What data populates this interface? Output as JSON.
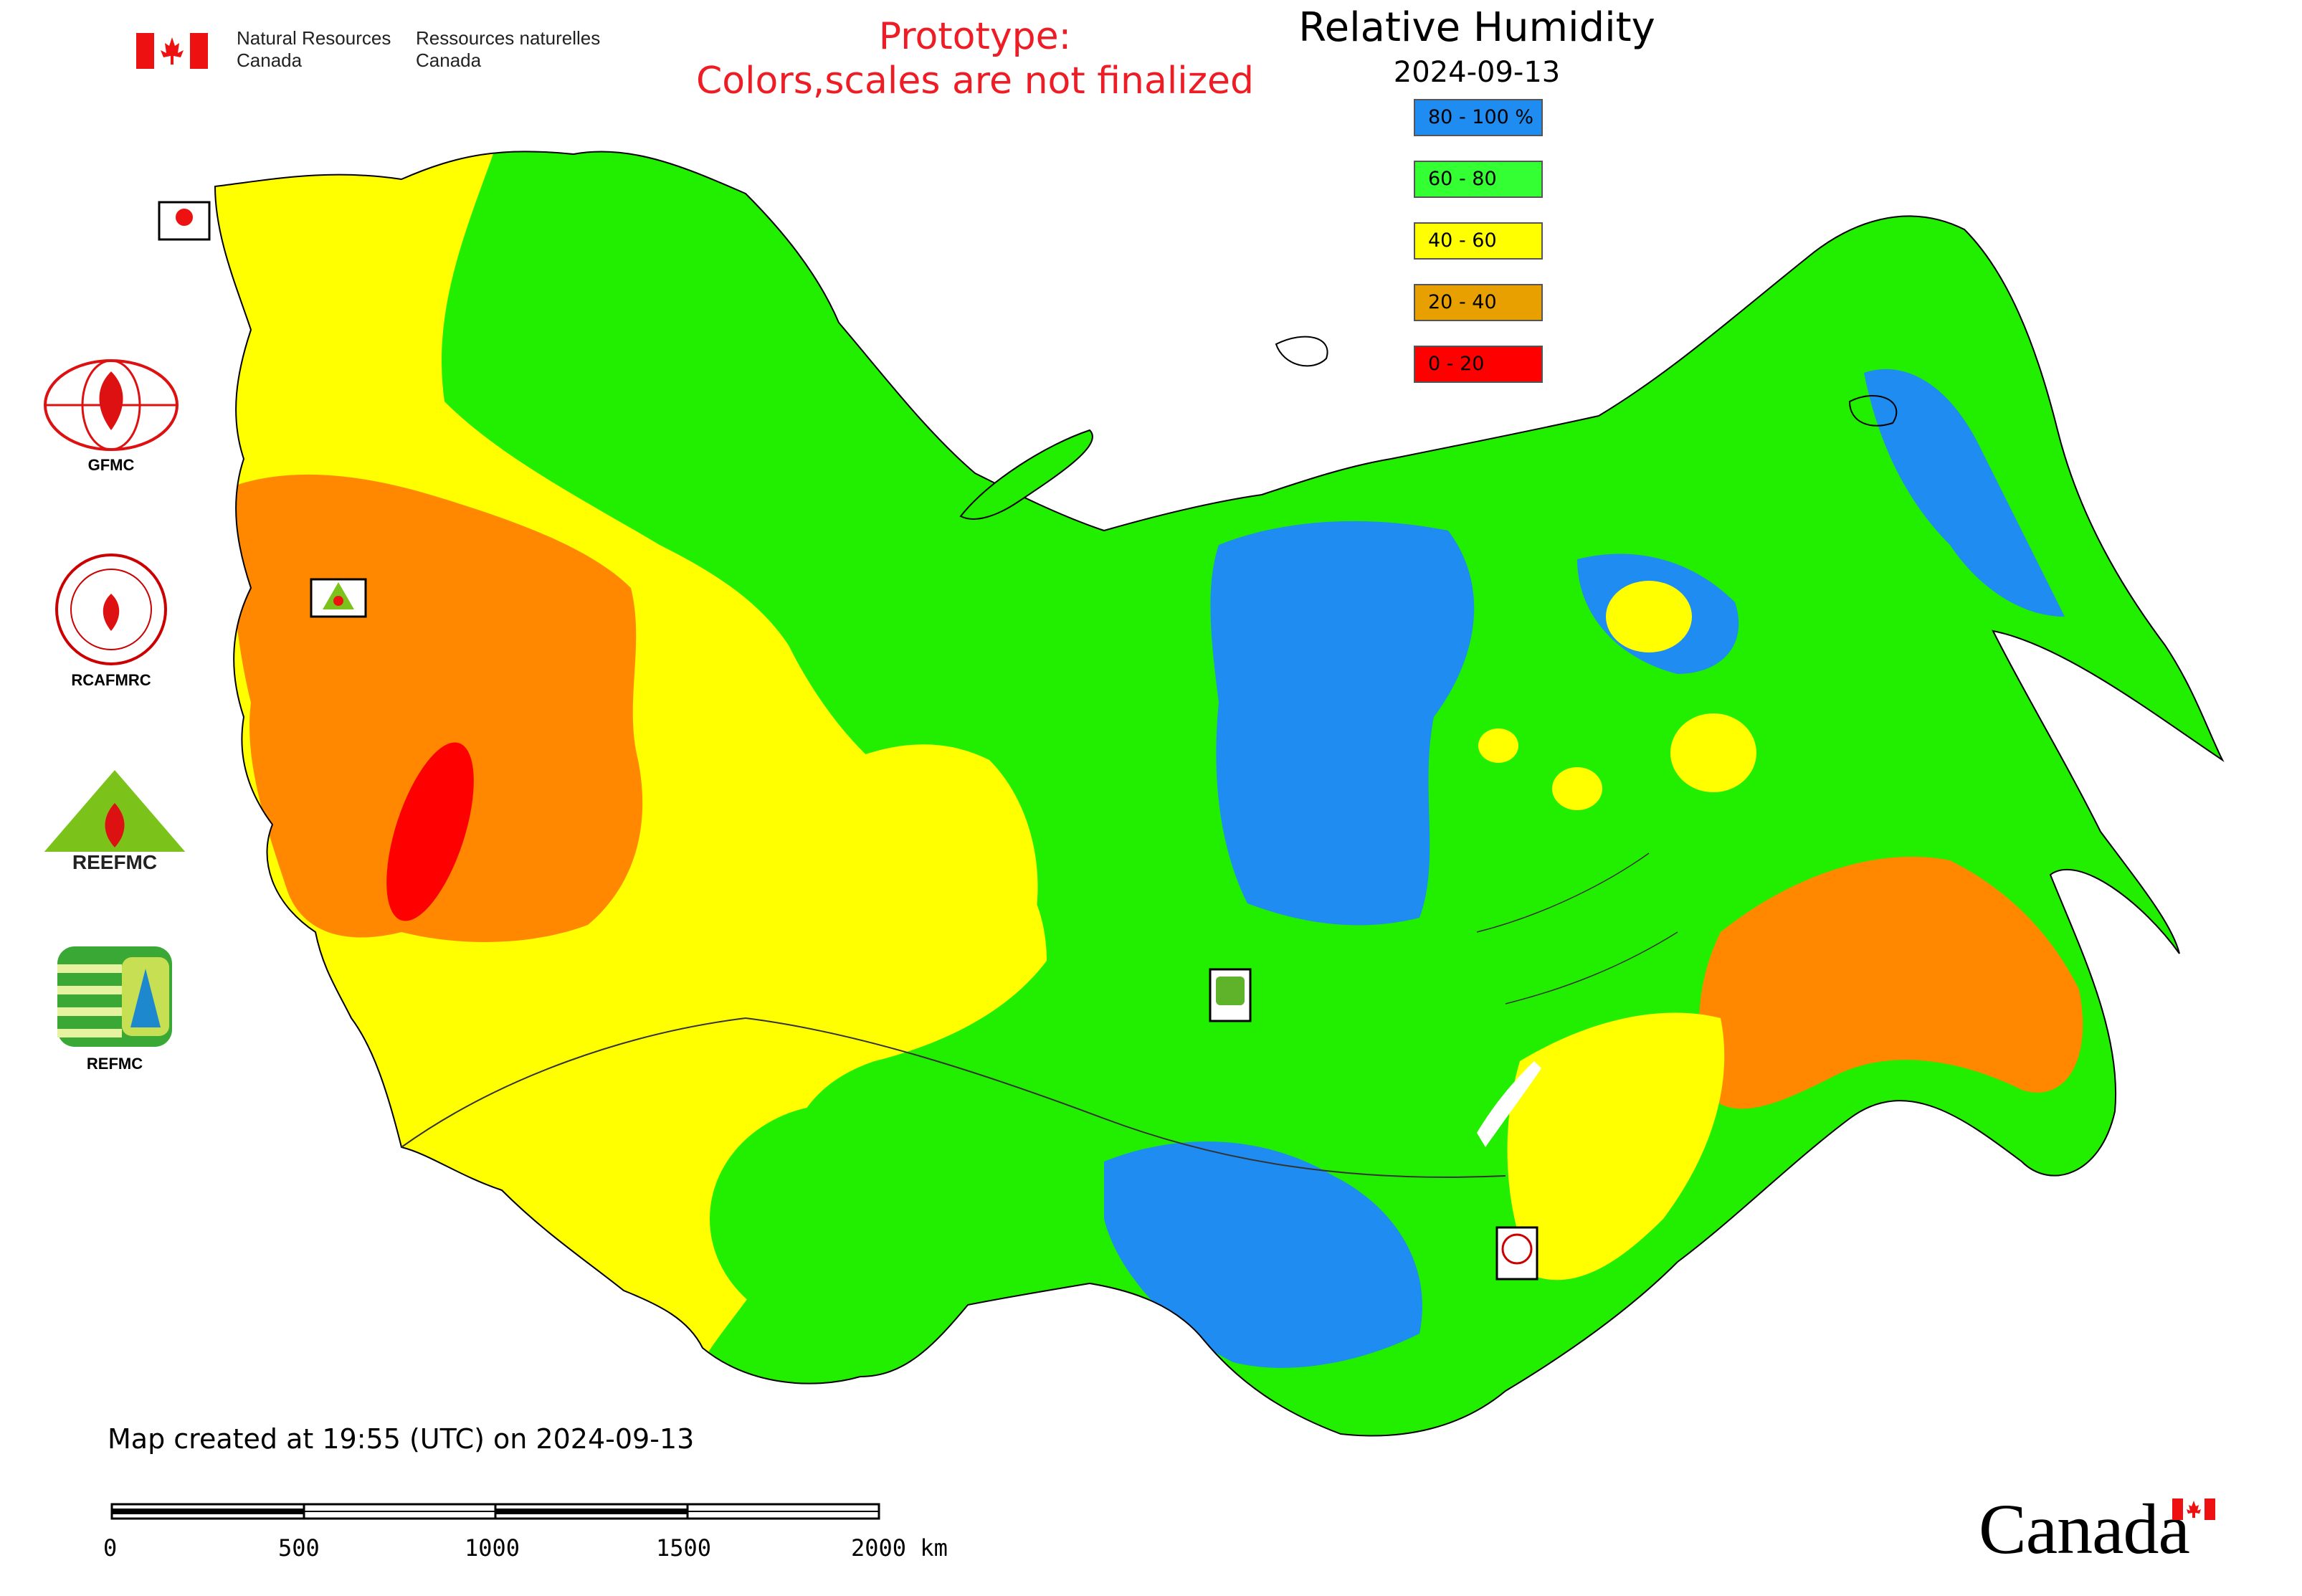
{
  "header": {
    "nrcan_en_line1": "Natural Resources",
    "nrcan_en_line2": "Canada",
    "nrcan_fr_line1": "Ressources naturelles",
    "nrcan_fr_line2": "Canada",
    "prototype_line1": "Prototype:",
    "prototype_line2": "Colors,scales are not finalized"
  },
  "map": {
    "title": "Relative Humidity",
    "date": "2024-09-13",
    "legend": [
      {
        "label": "80 - 100 %",
        "color": "#1e8cf0"
      },
      {
        "label": "60 - 80",
        "color": "#33ff33"
      },
      {
        "label": "40 - 60",
        "color": "#ffff00"
      },
      {
        "label": "20 - 40",
        "color": "#e8a000"
      },
      {
        "label": "0 - 20",
        "color": "#ff0000"
      }
    ],
    "colors": {
      "very_humid": "#1e8cf0",
      "humid": "#22ee00",
      "moderate": "#ffff00",
      "dry": "#ff8800",
      "very_dry": "#ff0000",
      "water": "#ffffff",
      "border": "#000000"
    }
  },
  "partners": [
    {
      "label": "GFMC",
      "icon": "gfmc-globe-flame-logo"
    },
    {
      "label": "RCAFMRC",
      "icon": "rcafmrc-seal-logo"
    },
    {
      "label": "",
      "icon": "reefmc-triangle-logo",
      "logo_text": "REEFMC"
    },
    {
      "label": "REFMC",
      "icon": "refmc-sigma-logo"
    }
  ],
  "footer": {
    "created": "Map created at 19:55 (UTC) on 2024-09-13",
    "scale_ticks": [
      "0",
      "500",
      "1000",
      "1500",
      "2000 km"
    ],
    "canada_wordmark": "Canada"
  }
}
